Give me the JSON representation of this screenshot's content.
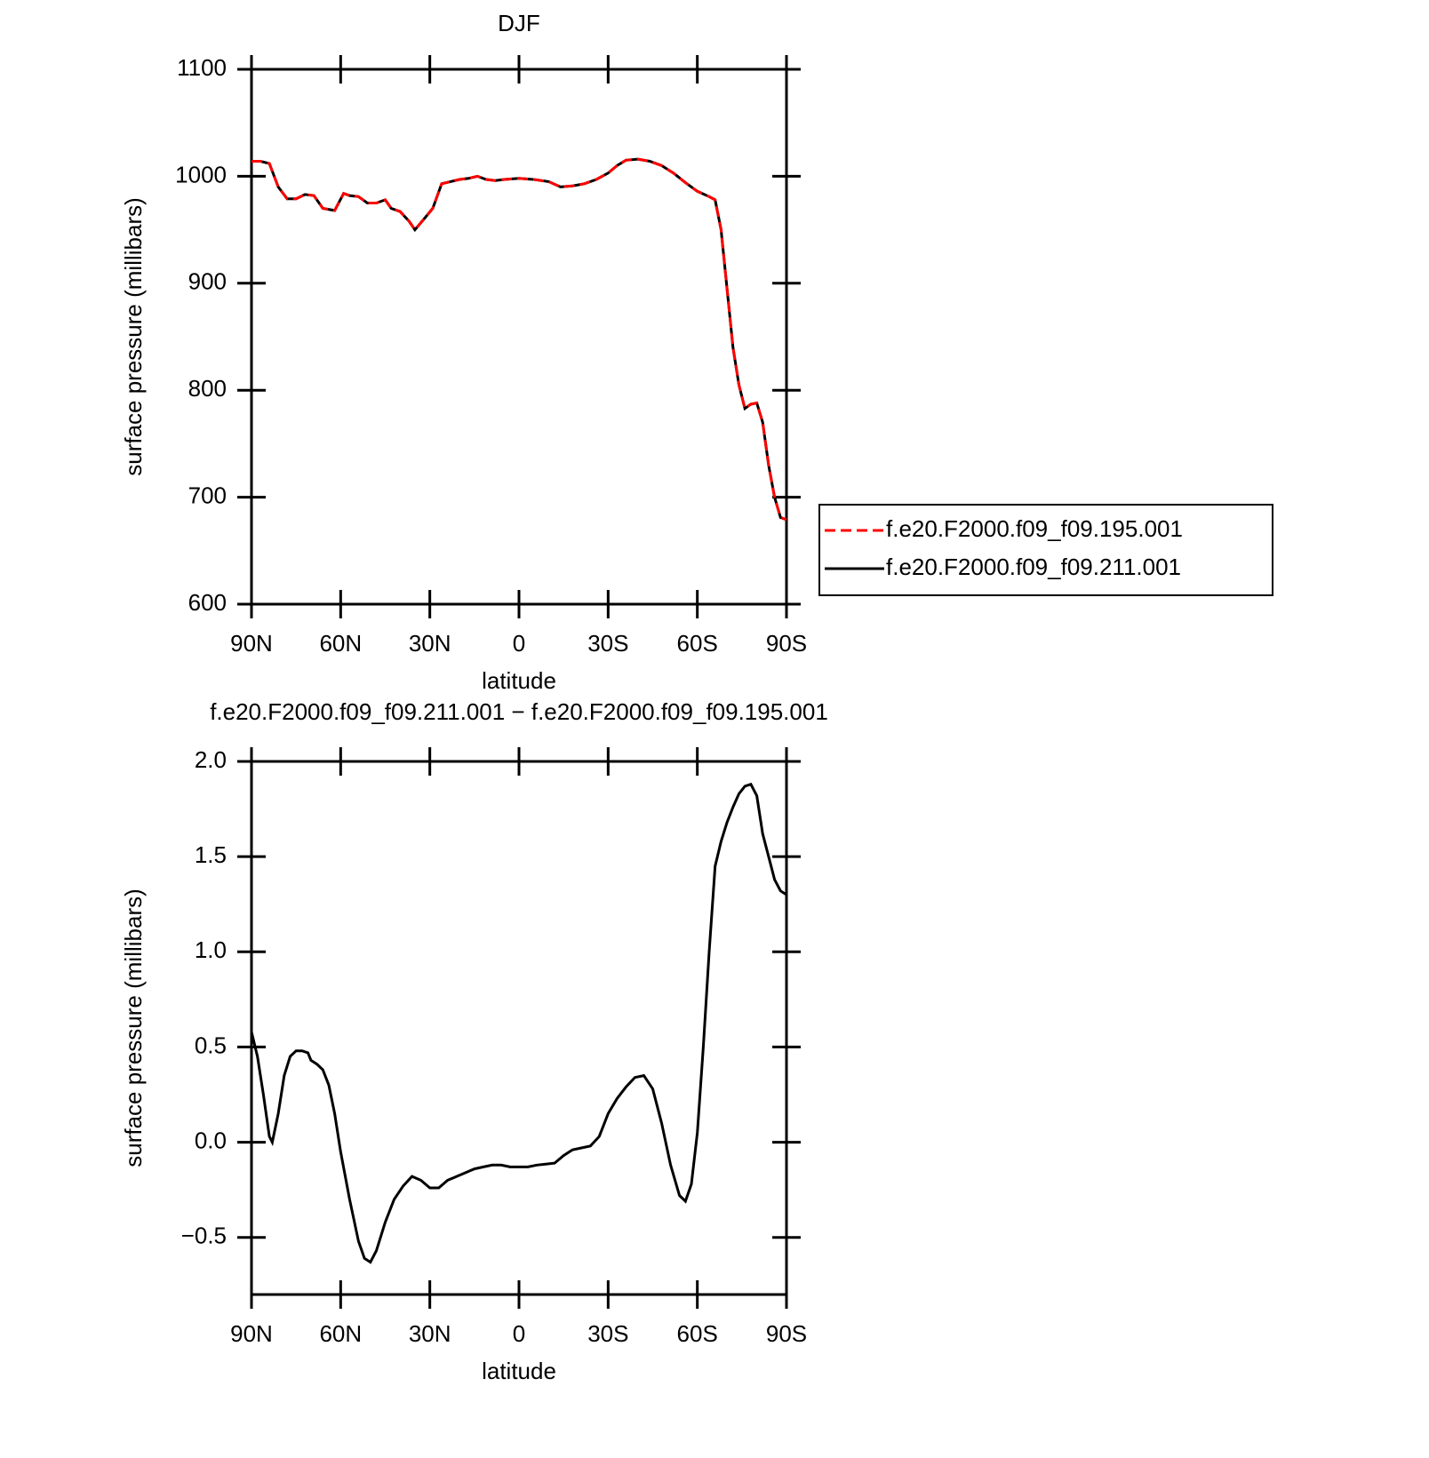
{
  "chart_data": [
    {
      "type": "line",
      "title": "DJF",
      "xlabel": "latitude",
      "ylabel": "surface pressure (millibars)",
      "x": [
        90,
        87,
        84,
        81,
        78,
        75,
        72,
        69,
        66,
        62,
        59,
        57,
        54,
        51,
        48,
        45,
        43,
        40,
        37,
        35,
        32,
        29,
        26,
        23,
        20,
        17,
        14,
        11,
        8,
        5,
        0,
        -5,
        -10,
        -14,
        -18,
        -22,
        -26,
        -30,
        -33,
        -36,
        -40,
        -44,
        -48,
        -52,
        -56,
        -60,
        -64,
        -66,
        -68,
        -70,
        -72,
        -74,
        -76,
        -78,
        -80,
        -82,
        -84,
        -86,
        -88,
        -90
      ],
      "xlim": [
        90,
        -90
      ],
      "xticks": [
        {
          "value": 90,
          "label": "90N"
        },
        {
          "value": 60,
          "label": "60N"
        },
        {
          "value": 30,
          "label": "30N"
        },
        0,
        {
          "value": -30,
          "label": "30S"
        },
        {
          "value": -60,
          "label": "60S"
        },
        {
          "value": -90,
          "label": "90S"
        }
      ],
      "ylim": [
        600,
        1100
      ],
      "yticks": [
        600,
        700,
        800,
        900,
        1000,
        1100
      ],
      "legend": "right",
      "series": [
        {
          "name": "f.e20.F2000.f09_f09.195.001",
          "color": "#ff0000",
          "dashed": true,
          "values": [
            1014,
            1014,
            1012,
            990,
            979,
            979,
            983,
            982,
            970,
            968,
            984,
            982,
            981,
            975,
            975,
            978,
            970,
            967,
            958,
            950,
            960,
            970,
            993,
            995,
            997,
            998,
            1000,
            997,
            996,
            997,
            998,
            997,
            995,
            990,
            991,
            993,
            997,
            1003,
            1010,
            1015,
            1016,
            1014,
            1010,
            1003,
            994,
            986,
            981,
            978,
            950,
            895,
            840,
            805,
            783,
            787,
            788,
            770,
            730,
            700,
            681,
            679
          ]
        },
        {
          "name": "f.e20.F2000.f09_f09.211.001",
          "color": "#000000",
          "dashed": false,
          "values": [
            1014,
            1014,
            1012,
            990,
            979,
            979,
            983,
            982,
            970,
            968,
            984,
            982,
            981,
            975,
            975,
            978,
            970,
            967,
            958,
            950,
            960,
            970,
            993,
            995,
            997,
            998,
            1000,
            997,
            996,
            997,
            998,
            997,
            995,
            990,
            991,
            993,
            997,
            1003,
            1010,
            1015,
            1016,
            1014,
            1010,
            1003,
            994,
            986,
            981,
            978,
            950,
            895,
            840,
            805,
            783,
            787,
            788,
            770,
            730,
            700,
            681,
            679
          ]
        }
      ]
    },
    {
      "type": "line",
      "title": "f.e20.F2000.f09_f09.211.001 − f.e20.F2000.f09_f09.195.001",
      "xlabel": "latitude",
      "ylabel": "surface pressure (millibars)",
      "x": [
        90,
        88,
        86,
        84,
        83,
        81,
        79,
        77,
        75,
        73,
        71,
        70,
        68,
        66,
        64,
        62,
        60,
        57,
        54,
        52,
        50,
        48,
        45,
        42,
        39,
        36,
        33,
        30,
        27,
        24,
        21,
        18,
        15,
        12,
        9,
        6,
        3,
        0,
        -3,
        -6,
        -9,
        -12,
        -15,
        -18,
        -21,
        -24,
        -27,
        -30,
        -33,
        -36,
        -39,
        -42,
        -45,
        -48,
        -51,
        -54,
        -56,
        -58,
        -60,
        -62,
        -64,
        -66,
        -68,
        -70,
        -72,
        -74,
        -76,
        -78,
        -80,
        -82,
        -84,
        -86,
        -88,
        -90
      ],
      "xlim": [
        90,
        -90
      ],
      "xticks": [
        {
          "value": 90,
          "label": "90N"
        },
        {
          "value": 60,
          "label": "60N"
        },
        {
          "value": 30,
          "label": "30N"
        },
        0,
        {
          "value": -30,
          "label": "30S"
        },
        {
          "value": -60,
          "label": "60S"
        },
        {
          "value": -90,
          "label": "90S"
        }
      ],
      "ylim": [
        -0.8,
        2.0
      ],
      "yticks": [
        {
          "value": -0.5,
          "label": "−0.5"
        },
        {
          "value": 0,
          "label": "0.0"
        },
        {
          "value": 0.5,
          "label": "0.5"
        },
        {
          "value": 1,
          "label": "1.0"
        },
        {
          "value": 1.5,
          "label": "1.5"
        },
        {
          "value": 2,
          "label": "2.0"
        }
      ],
      "series": [
        {
          "color": "#000000",
          "dashed": false,
          "values": [
            0.58,
            0.45,
            0.25,
            0.03,
            0.0,
            0.15,
            0.35,
            0.45,
            0.48,
            0.48,
            0.47,
            0.43,
            0.41,
            0.38,
            0.3,
            0.15,
            -0.05,
            -0.3,
            -0.52,
            -0.61,
            -0.63,
            -0.57,
            -0.42,
            -0.3,
            -0.23,
            -0.18,
            -0.2,
            -0.24,
            -0.24,
            -0.2,
            -0.18,
            -0.16,
            -0.14,
            -0.13,
            -0.12,
            -0.12,
            -0.13,
            -0.13,
            -0.13,
            -0.12,
            -0.115,
            -0.11,
            -0.07,
            -0.04,
            -0.03,
            -0.02,
            0.03,
            0.15,
            0.23,
            0.29,
            0.34,
            0.35,
            0.28,
            0.1,
            -0.12,
            -0.28,
            -0.31,
            -0.22,
            0.05,
            0.5,
            1.0,
            1.45,
            1.58,
            1.68,
            1.76,
            1.83,
            1.87,
            1.88,
            1.82,
            1.62,
            1.5,
            1.38,
            1.32,
            1.3
          ]
        }
      ]
    }
  ]
}
